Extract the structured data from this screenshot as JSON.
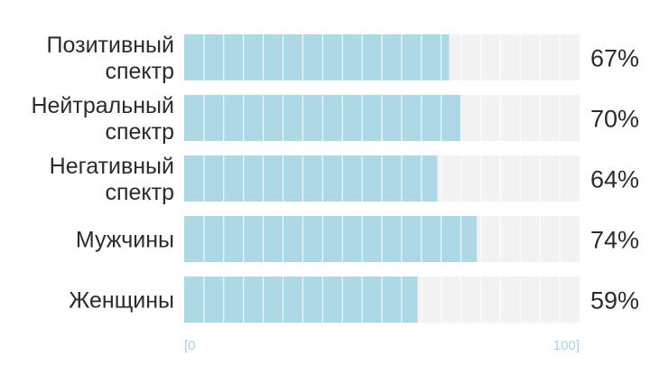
{
  "chart_data": {
    "type": "bar",
    "orientation": "horizontal",
    "categories": [
      [
        "Позитивный",
        "спектр"
      ],
      [
        "Нейтральный",
        "спектр"
      ],
      [
        "Негативный",
        "спектр"
      ],
      [
        "Мужчины"
      ],
      [
        "Женщины"
      ]
    ],
    "values": [
      67,
      70,
      64,
      74,
      59
    ],
    "value_labels": [
      "67%",
      "70%",
      "64%",
      "74%",
      "59%"
    ],
    "xlim": [
      0,
      100
    ],
    "x_tick_labels": [
      "[0",
      "100]"
    ],
    "grid": true,
    "colors": {
      "bar": "#add8e6",
      "track": "#f2f2f2",
      "divider": "#ffffff",
      "axis_text": "#a8d4e6",
      "text": "#2b2b2b"
    }
  }
}
